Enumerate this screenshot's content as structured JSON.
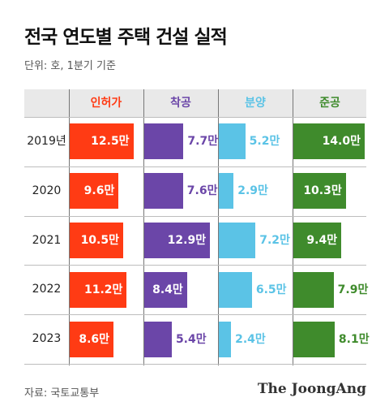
{
  "title": "전국 연도별 주택 건설 실적",
  "unit_note": "단위: 호, 1분기 기준",
  "source": "자료: 국토교통부",
  "brand": "The JoongAng",
  "chart_data": {
    "type": "bar",
    "orientation": "horizontal",
    "title": "전국 연도별 주택 건설 실적",
    "unit_note": "단위: 호, 1분기 기준",
    "categories": [
      "2019년",
      "2020",
      "2021",
      "2022",
      "2023"
    ],
    "value_suffix": "만",
    "series": [
      {
        "name": "인허가",
        "color": "#ff3b14",
        "labels": [
          "12.5만",
          "9.6만",
          "10.5만",
          "11.2만",
          "8.6만"
        ],
        "values": [
          12.5,
          9.6,
          10.5,
          11.2,
          8.6
        ]
      },
      {
        "name": "착공",
        "color": "#6b46a8",
        "labels": [
          "7.7만",
          "7.6만",
          "12.9만",
          "8.4만",
          "5.4만"
        ],
        "values": [
          7.7,
          7.6,
          12.9,
          8.4,
          5.4
        ]
      },
      {
        "name": "분양",
        "color": "#5bc3e6",
        "labels": [
          "5.2만",
          "2.9만",
          "7.2만",
          "6.5만",
          "2.4만"
        ],
        "values": [
          5.2,
          2.9,
          7.2,
          6.5,
          2.4
        ]
      },
      {
        "name": "준공",
        "color": "#3f8b2c",
        "labels": [
          "14.0만",
          "10.3만",
          "9.4만",
          "7.9만",
          "8.1만"
        ],
        "values": [
          14.0,
          10.3,
          9.4,
          7.9,
          8.1
        ]
      }
    ],
    "value_max": 14.0,
    "legend": "column headers"
  }
}
